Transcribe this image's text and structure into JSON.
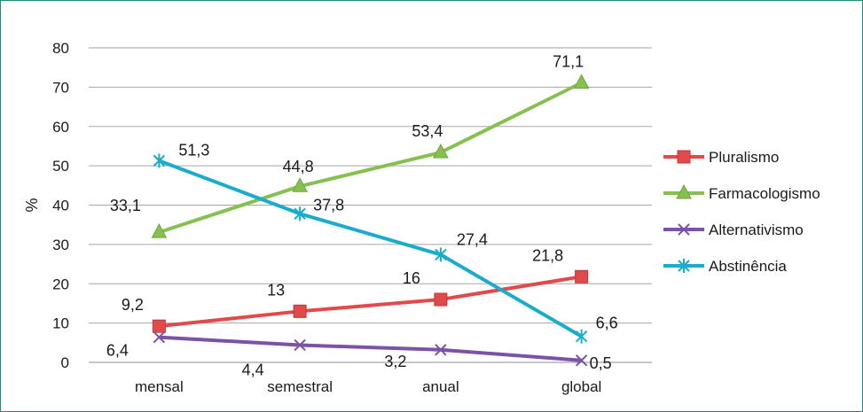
{
  "chart_data": {
    "type": "line",
    "title": "",
    "xlabel": "",
    "ylabel": "%",
    "ylim": [
      0,
      80
    ],
    "yticks": [
      0,
      10,
      20,
      30,
      40,
      50,
      60,
      70,
      80
    ],
    "grid": true,
    "legend_position": "right",
    "categories": [
      "mensal",
      "semestral",
      "anual",
      "global"
    ],
    "series": [
      {
        "name": "Pluralismo",
        "values": [
          9.2,
          13,
          16,
          21.8
        ],
        "labels": [
          "9,2",
          "13",
          "16",
          "21,8"
        ],
        "color": "#e04a4a",
        "marker": "square"
      },
      {
        "name": "Farmacologismo",
        "values": [
          33.1,
          44.8,
          53.4,
          71.1
        ],
        "labels": [
          "33,1",
          "44,8",
          "53,4",
          "71,1"
        ],
        "color": "#86c050",
        "marker": "triangle"
      },
      {
        "name": "Alternativismo",
        "values": [
          6.4,
          4.4,
          3.2,
          0.5
        ],
        "labels": [
          "6,4",
          "4,4",
          "3,2",
          "0,5"
        ],
        "color": "#7b52a6",
        "marker": "x"
      },
      {
        "name": "Abstinência",
        "values": [
          51.3,
          37.8,
          27.4,
          6.6
        ],
        "labels": [
          "51,3",
          "37,8",
          "27,4",
          "6,6"
        ],
        "color": "#1aaccb",
        "marker": "star"
      }
    ]
  }
}
